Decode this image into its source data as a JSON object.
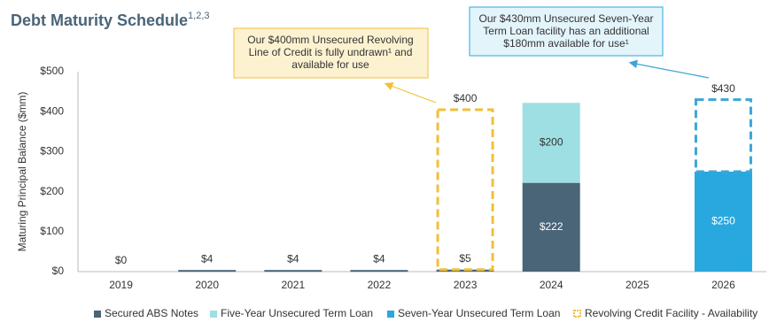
{
  "chart_data": {
    "type": "stacked_bar",
    "title": "Debt Maturity Schedule",
    "title_note": "1,2,3",
    "y_label": "Maturing Principal Balance ($mm)",
    "categories": [
      "2019",
      "2020",
      "2021",
      "2022",
      "2023",
      "2024",
      "2025",
      "2026"
    ],
    "series": [
      {
        "name": "Secured ABS Notes",
        "color": "#4a6478",
        "style": "solid",
        "values": [
          0,
          4,
          4,
          4,
          5,
          222,
          null,
          null
        ],
        "value_labels": [
          "$0",
          "$4",
          "$4",
          "$4",
          "$5",
          "$222",
          null,
          null
        ]
      },
      {
        "name": "Five-Year Unsecured Term Loan",
        "color": "#9ddfe3",
        "style": "solid",
        "values": [
          null,
          null,
          null,
          null,
          null,
          200,
          null,
          null
        ],
        "value_labels": [
          null,
          null,
          null,
          null,
          null,
          "$200",
          null,
          null
        ]
      },
      {
        "name": "Seven-Year Unsecured Term Loan",
        "color": "#29a8e0",
        "style": "solid",
        "values": [
          null,
          null,
          null,
          null,
          null,
          null,
          null,
          250
        ],
        "value_labels": [
          null,
          null,
          null,
          null,
          null,
          null,
          null,
          "$250"
        ]
      },
      {
        "name": "Revolving Credit Facility - Availability",
        "color": "#f0c03a",
        "style": "dashed",
        "point_colors": [
          null,
          null,
          null,
          null,
          "#f0c03a",
          null,
          null,
          "#3ba6d6"
        ],
        "values": [
          null,
          null,
          null,
          null,
          400,
          null,
          null,
          180
        ],
        "value_labels": [
          null,
          null,
          null,
          null,
          "$400",
          null,
          null,
          null
        ]
      }
    ],
    "totals": [
      null,
      null,
      null,
      null,
      null,
      null,
      null,
      430
    ],
    "total_labels": [
      null,
      null,
      null,
      null,
      null,
      null,
      null,
      "$430"
    ],
    "ylim": [
      0,
      500
    ],
    "yticks": [
      {
        "value": 0,
        "label": "$0"
      },
      {
        "value": 100,
        "label": "$100"
      },
      {
        "value": 200,
        "label": "$200"
      },
      {
        "value": 300,
        "label": "$300"
      },
      {
        "value": 400,
        "label": "$400"
      },
      {
        "value": 500,
        "label": "$500"
      }
    ],
    "annotations": [
      {
        "lines": [
          "Our $400mm Unsecured Revolving",
          "Line of Credit is fully undrawn¹ and",
          "available for use"
        ]
      },
      {
        "lines": [
          "Our $430mm Unsecured Seven-Year",
          "Term Loan facility has an additional",
          "$180mm available for use¹"
        ]
      }
    ]
  }
}
